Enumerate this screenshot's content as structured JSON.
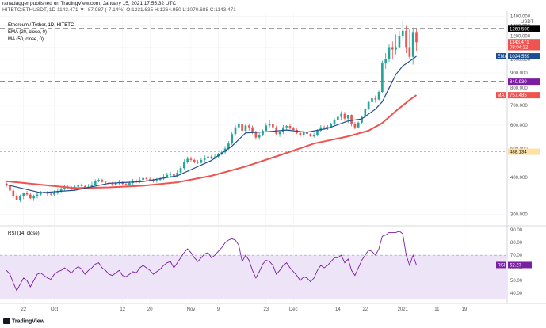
{
  "header": {
    "publisher": "ranadagger published on TradingView.com, January 15, 2021 17:55:32 UTC",
    "ticker_line": "HITBTC:ETHUSDT, 1D 1143.471 ▼ -87.987 (-7.14%) O:1231.635 H:1264.950 L:1070.688 C:1143.471"
  },
  "footer": {
    "brand": "TradingView"
  },
  "chart_data": [
    {
      "type": "candlestick",
      "title": "Ethereum / Tether, 1D, HITBTC",
      "legend": [
        "EMA (20, close, 0)",
        "MA (50, close, 0)"
      ],
      "currency": "USDT",
      "scale": "log",
      "y_ticks": [
        300,
        400,
        500,
        600,
        700,
        800,
        900,
        1000,
        1100,
        1200,
        1300,
        1400
      ],
      "y_tick_labels": [
        "300.000",
        "400.000",
        "500.000",
        "600.000",
        "700.000",
        "800.000",
        "900.000",
        "1000.000",
        "1100.000",
        "1200.000",
        "1300.000",
        "1400.000"
      ],
      "ylim": [
        278,
        1420
      ],
      "x_tick_labels": [
        "22",
        "Oct",
        "12",
        "20",
        "Nov",
        "9",
        "23",
        "Dec",
        "14",
        "22",
        "2021",
        "11",
        "19"
      ],
      "x_tick_day_index": [
        5,
        14,
        34,
        42,
        54,
        62,
        76,
        84,
        97,
        105,
        116,
        126,
        134
      ],
      "candles": {
        "open": [
          381,
          375,
          361,
          346,
          336,
          345,
          354,
          350,
          340,
          345,
          350,
          358,
          355,
          352,
          350,
          356,
          360,
          365,
          370,
          368,
          365,
          372,
          376,
          374,
          369,
          372,
          378,
          388,
          392,
          386,
          384,
          380,
          378,
          383,
          386,
          380,
          378,
          383,
          388,
          386,
          392,
          398,
          395,
          393,
          388,
          392,
          396,
          402,
          408,
          412,
          405,
          415,
          430,
          450,
          462,
          458,
          452,
          448,
          458,
          466,
          470,
          465,
          470,
          478,
          486,
          500,
          520,
          560,
          590,
          605,
          575,
          598,
          590,
          568,
          545,
          556,
          575,
          598,
          605,
          590,
          560,
          570,
          590,
          596,
          585,
          578,
          565,
          555,
          568,
          560,
          550,
          555,
          575,
          590,
          585,
          592,
          605,
          625,
          640,
          655,
          632,
          650,
          607,
          590,
          612,
          640,
          680,
          718,
          740,
          732,
          777,
          970,
          1000,
          1100,
          1080,
          1100,
          1200,
          1250,
          1100,
          1020,
          1230
        ],
        "high": [
          390,
          382,
          368,
          352,
          350,
          356,
          360,
          356,
          350,
          354,
          360,
          364,
          360,
          358,
          362,
          368,
          372,
          376,
          378,
          374,
          378,
          383,
          382,
          378,
          380,
          386,
          394,
          396,
          396,
          390,
          388,
          386,
          390,
          392,
          390,
          386,
          390,
          395,
          394,
          400,
          404,
          402,
          400,
          396,
          398,
          402,
          410,
          415,
          418,
          420,
          424,
          438,
          460,
          470,
          470,
          462,
          458,
          466,
          475,
          478,
          476,
          480,
          484,
          494,
          510,
          530,
          570,
          600,
          615,
          610,
          605,
          608,
          598,
          575,
          565,
          580,
          610,
          625,
          615,
          598,
          576,
          600,
          600,
          604,
          592,
          584,
          570,
          573,
          572,
          564,
          565,
          582,
          600,
          598,
          600,
          612,
          632,
          650,
          668,
          665,
          650,
          652,
          615,
          618,
          645,
          685,
          725,
          752,
          755,
          784,
          990,
          1050,
          1130,
          1150,
          1215,
          1250,
          1350,
          1300,
          1270,
          1280,
          1264
        ],
        "low": [
          372,
          358,
          340,
          335,
          330,
          338,
          345,
          338,
          333,
          340,
          345,
          350,
          346,
          345,
          345,
          350,
          356,
          360,
          364,
          360,
          360,
          367,
          370,
          365,
          364,
          368,
          376,
          385,
          384,
          380,
          376,
          374,
          374,
          378,
          376,
          374,
          374,
          378,
          382,
          382,
          388,
          390,
          388,
          384,
          384,
          388,
          392,
          398,
          402,
          402,
          402,
          412,
          425,
          445,
          450,
          446,
          444,
          445,
          452,
          460,
          460,
          460,
          466,
          474,
          480,
          495,
          515,
          552,
          570,
          565,
          565,
          575,
          560,
          535,
          535,
          550,
          570,
          590,
          580,
          555,
          548,
          560,
          580,
          578,
          572,
          560,
          548,
          545,
          552,
          548,
          545,
          550,
          568,
          578,
          578,
          588,
          600,
          622,
          625,
          620,
          610,
          595,
          580,
          585,
          605,
          635,
          675,
          710,
          715,
          728,
          770,
          930,
          980,
          1000,
          1040,
          1090,
          1160,
          1050,
          1000,
          960,
          1070
        ],
        "close": [
          375,
          361,
          346,
          336,
          345,
          354,
          350,
          340,
          345,
          350,
          358,
          355,
          352,
          350,
          356,
          360,
          365,
          370,
          368,
          365,
          372,
          376,
          374,
          369,
          372,
          378,
          388,
          392,
          386,
          384,
          380,
          378,
          383,
          386,
          380,
          378,
          383,
          388,
          386,
          392,
          398,
          395,
          393,
          388,
          392,
          396,
          402,
          408,
          412,
          405,
          415,
          430,
          450,
          462,
          458,
          452,
          448,
          458,
          466,
          470,
          465,
          470,
          478,
          486,
          500,
          520,
          560,
          590,
          605,
          575,
          598,
          590,
          568,
          545,
          556,
          575,
          598,
          605,
          590,
          560,
          570,
          590,
          596,
          585,
          578,
          565,
          555,
          568,
          560,
          550,
          555,
          575,
          590,
          585,
          592,
          605,
          625,
          640,
          655,
          632,
          650,
          607,
          590,
          612,
          640,
          680,
          718,
          740,
          732,
          777,
          970,
          1000,
          1100,
          1080,
          1100,
          1200,
          1250,
          1100,
          1020,
          1230,
          1143
        ]
      },
      "ema20_series": [
        {
          "i": 0,
          "v": 378
        },
        {
          "i": 10,
          "v": 355
        },
        {
          "i": 20,
          "v": 362
        },
        {
          "i": 30,
          "v": 382
        },
        {
          "i": 40,
          "v": 387
        },
        {
          "i": 50,
          "v": 405
        },
        {
          "i": 60,
          "v": 456
        },
        {
          "i": 66,
          "v": 510
        },
        {
          "i": 70,
          "v": 565
        },
        {
          "i": 76,
          "v": 570
        },
        {
          "i": 82,
          "v": 578
        },
        {
          "i": 88,
          "v": 568
        },
        {
          "i": 94,
          "v": 585
        },
        {
          "i": 100,
          "v": 620
        },
        {
          "i": 104,
          "v": 630
        },
        {
          "i": 108,
          "v": 680
        },
        {
          "i": 110,
          "v": 720
        },
        {
          "i": 112,
          "v": 800
        },
        {
          "i": 114,
          "v": 890
        },
        {
          "i": 116,
          "v": 950
        },
        {
          "i": 118,
          "v": 985
        },
        {
          "i": 120,
          "v": 1024.559
        }
      ],
      "ma50_series": [
        {
          "i": 0,
          "v": 388
        },
        {
          "i": 10,
          "v": 378
        },
        {
          "i": 20,
          "v": 368
        },
        {
          "i": 30,
          "v": 370
        },
        {
          "i": 40,
          "v": 375
        },
        {
          "i": 50,
          "v": 385
        },
        {
          "i": 60,
          "v": 405
        },
        {
          "i": 70,
          "v": 435
        },
        {
          "i": 80,
          "v": 475
        },
        {
          "i": 90,
          "v": 520
        },
        {
          "i": 100,
          "v": 550
        },
        {
          "i": 106,
          "v": 575
        },
        {
          "i": 110,
          "v": 610
        },
        {
          "i": 114,
          "v": 670
        },
        {
          "i": 118,
          "v": 730
        },
        {
          "i": 120,
          "v": 757.485
        }
      ],
      "horizontal_levels": [
        {
          "value": 1268.5,
          "label": "1268.500",
          "style": "dash",
          "color": "#000000"
        },
        {
          "value": 840.93,
          "label": "840.930",
          "style": "dash",
          "color": "#7b1fa2"
        },
        {
          "value": 488.134,
          "label": "488.134",
          "style": "dash-light",
          "color": "#ff9800"
        }
      ],
      "price_labels": [
        {
          "value": 1143.471,
          "label": "1143.471",
          "color": "#ef5350"
        },
        {
          "value": 1100,
          "label": "08:04:32",
          "color": "#ef5350"
        },
        {
          "value": 1024.559,
          "label": "1024.559",
          "color": "#1e4d92",
          "tag": "EMA"
        },
        {
          "value": 757.485,
          "label": "757.485",
          "color": "#ef5350",
          "tag": "MA"
        }
      ],
      "colors": {
        "up": "#26a69a",
        "down": "#ef5350",
        "ema": "#1e4d92",
        "ma": "#ef5350"
      }
    },
    {
      "type": "line",
      "title": "RSI (14, close)",
      "ylim": [
        35,
        92
      ],
      "y_ticks": [
        40,
        50,
        60,
        70,
        80,
        90
      ],
      "y_tick_labels": [
        "40.00",
        "50.00",
        "60.00",
        "70.00",
        "80.00",
        "90.00"
      ],
      "band": [
        30,
        70
      ],
      "last_value": 62.27,
      "last_label": "62.27",
      "color": "#7b1fa2",
      "values": [
        58,
        55,
        48,
        42,
        47,
        52,
        50,
        45,
        50,
        55,
        56,
        54,
        52,
        51,
        55,
        57,
        58,
        60,
        58,
        56,
        59,
        61,
        59,
        55,
        58,
        60,
        63,
        64,
        60,
        58,
        55,
        54,
        56,
        58,
        54,
        53,
        55,
        57,
        56,
        60,
        62,
        60,
        58,
        55,
        57,
        59,
        62,
        64,
        65,
        60,
        64,
        68,
        72,
        75,
        72,
        68,
        65,
        68,
        71,
        72,
        68,
        70,
        73,
        76,
        80,
        82,
        83,
        82,
        78,
        65,
        70,
        66,
        58,
        52,
        57,
        63,
        66,
        65,
        62,
        55,
        58,
        62,
        64,
        60,
        57,
        54,
        50,
        53,
        52,
        49,
        52,
        58,
        62,
        60,
        62,
        65,
        68,
        68,
        70,
        64,
        67,
        58,
        54,
        60,
        66,
        70,
        74,
        73,
        70,
        75,
        85,
        86,
        88,
        88,
        88,
        89,
        87,
        70,
        62,
        70,
        62.27
      ]
    }
  ]
}
